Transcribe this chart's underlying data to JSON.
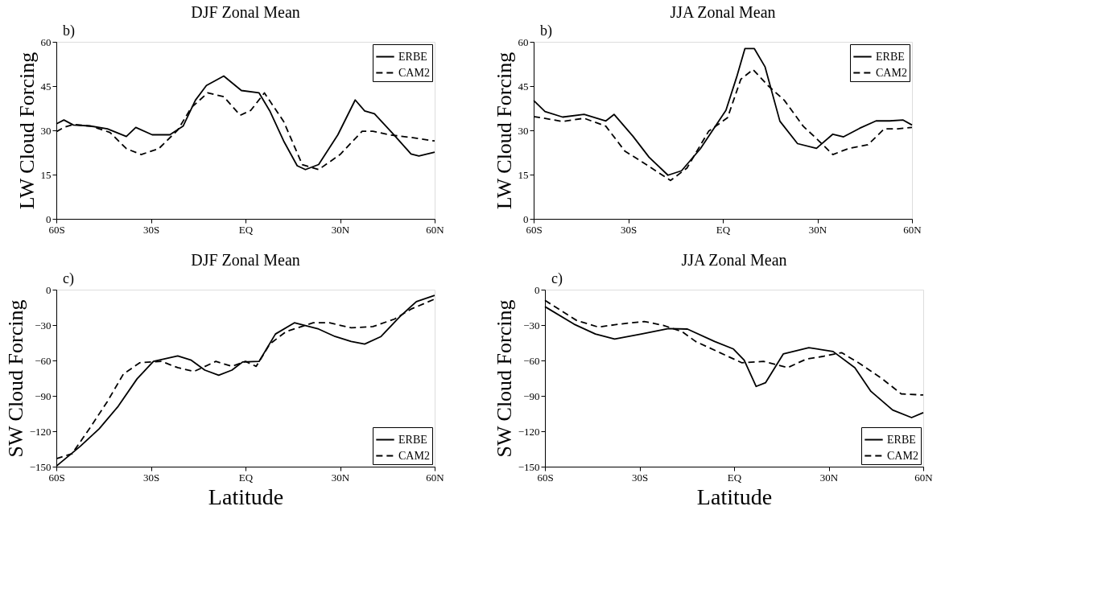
{
  "chart_data": [
    {
      "type": "line",
      "title": "DJF  Zonal Mean",
      "annotations": [
        "b)"
      ],
      "ylabel": "LW Cloud Forcing",
      "xlim": [
        -60,
        60
      ],
      "xticks": [
        {
          "value": -60,
          "label": "60S"
        },
        {
          "value": -30,
          "label": "30S"
        },
        {
          "value": 0,
          "label": "EQ"
        },
        {
          "value": 30,
          "label": "30N"
        },
        {
          "value": 60,
          "label": "60N"
        }
      ],
      "ylim": [
        0,
        60
      ],
      "yticks": [
        0,
        15,
        30,
        45,
        60
      ],
      "legend": "top right",
      "grid": false,
      "series": [
        {
          "name": "ERBE",
          "color": "#000000",
          "line_style": "solid",
          "x": [
            -60,
            -57.6,
            -54.6,
            -49.4,
            -43.8,
            -37.8,
            -34.8,
            -29.6,
            -24,
            -19.8,
            -15.9,
            -12.4,
            -6.9,
            -1.3,
            4.3,
            7.8,
            12.1,
            16.4,
            19,
            23.2,
            29.3,
            34.8,
            37.8,
            40.9,
            46.4,
            52.5,
            55,
            60
          ],
          "values": [
            32.2,
            33.5,
            31.8,
            31.5,
            30.5,
            27.9,
            31,
            28.5,
            28.5,
            31.4,
            40.2,
            45.2,
            48.4,
            43.5,
            42.7,
            36.4,
            26.4,
            18,
            16.7,
            18.4,
            28.5,
            40.3,
            36.6,
            35.6,
            29.3,
            22,
            21.3,
            22.6
          ]
        },
        {
          "name": "CAM2",
          "color": "#000000",
          "line_style": "dashed",
          "x": [
            -60,
            -57.6,
            -54.6,
            -49,
            -43,
            -37.8,
            -33.1,
            -27.5,
            -21.5,
            -17.2,
            -12,
            -6.9,
            -1.7,
            1.7,
            6,
            12.1,
            18,
            23.2,
            30,
            37,
            40.4,
            45.5,
            52.5,
            60
          ],
          "values": [
            29.5,
            31,
            32,
            31.4,
            29.3,
            23.8,
            21.8,
            23.8,
            30.1,
            37.7,
            42.7,
            41.4,
            35.1,
            36.8,
            42.7,
            33,
            18.4,
            16.7,
            21.8,
            29.7,
            29.7,
            28.5,
            27.6,
            26.4
          ]
        }
      ]
    },
    {
      "type": "line",
      "title": "JJA  Zonal Mean",
      "annotations": [
        "b)"
      ],
      "ylabel": "LW Cloud Forcing",
      "xlim": [
        -60,
        60
      ],
      "xticks": [
        {
          "value": -60,
          "label": "60S"
        },
        {
          "value": -30,
          "label": "30S"
        },
        {
          "value": 0,
          "label": "EQ"
        },
        {
          "value": 30,
          "label": "30N"
        },
        {
          "value": 60,
          "label": "60N"
        }
      ],
      "ylim": [
        0,
        60
      ],
      "yticks": [
        0,
        15,
        30,
        45,
        60
      ],
      "legend": "top right",
      "grid": false,
      "series": [
        {
          "name": "ERBE",
          "color": "#000000",
          "line_style": "solid",
          "x": [
            -60,
            -56.4,
            -50.8,
            -44,
            -37.1,
            -34.5,
            -28.5,
            -23.4,
            -17.4,
            -13.1,
            -7.1,
            1,
            4.4,
            7,
            10,
            13.4,
            18.1,
            23.7,
            29.7,
            34.9,
            38.3,
            43.4,
            48.6,
            52.9,
            57.2,
            60
          ],
          "values": [
            40.1,
            36.4,
            34.5,
            35.4,
            33.2,
            35.4,
            28,
            20.9,
            14.8,
            16.3,
            23.8,
            36.8,
            48.1,
            57.7,
            57.7,
            51.5,
            33.1,
            25.5,
            23.9,
            28.7,
            27.8,
            30.7,
            33.2,
            33.2,
            33.5,
            31.8
          ]
        },
        {
          "name": "CAM2",
          "color": "#000000",
          "line_style": "dashed",
          "x": [
            -60,
            -50.8,
            -44,
            -37.1,
            -31.1,
            -24.3,
            -16.6,
            -11.4,
            -4.5,
            1.5,
            5.7,
            9.6,
            14.3,
            19.5,
            25.5,
            29.7,
            34.9,
            40,
            46,
            51.2,
            55.5,
            60
          ],
          "values": [
            34.7,
            33,
            34.1,
            31.4,
            23,
            18.4,
            13,
            17.2,
            29.7,
            34.3,
            47.3,
            50.6,
            45.2,
            40.2,
            31.4,
            27.2,
            21.8,
            23.9,
            25.1,
            30.5,
            30.5,
            31
          ]
        }
      ]
    },
    {
      "type": "line",
      "title": "DJF  Zonal Mean",
      "annotations": [
        "c)"
      ],
      "xlabel": "Latitude",
      "ylabel": "SW Cloud Forcing",
      "xlim": [
        -60,
        60
      ],
      "xticks": [
        {
          "value": -60,
          "label": "60S"
        },
        {
          "value": -30,
          "label": "30S"
        },
        {
          "value": 0,
          "label": "EQ"
        },
        {
          "value": 30,
          "label": "30N"
        },
        {
          "value": 60,
          "label": "60N"
        }
      ],
      "ylim": [
        -150,
        0
      ],
      "yticks": [
        -150,
        -120,
        -90,
        -60,
        -30,
        0
      ],
      "legend": "bottom right",
      "grid": false,
      "series": [
        {
          "name": "ERBE",
          "color": "#000000",
          "line_style": "solid",
          "x": [
            -60,
            -52.4,
            -46.4,
            -40.4,
            -34.4,
            -29.2,
            -21.5,
            -17.2,
            -12.9,
            -8.5,
            -4.3,
            -0.9,
            4.3,
            9.5,
            15.5,
            23.2,
            28.4,
            33.5,
            37.8,
            43,
            49,
            54.2,
            60
          ],
          "values": [
            -149.6,
            -132.7,
            -117.9,
            -98.9,
            -75.6,
            -60.8,
            -56.2,
            -59.8,
            -68.2,
            -72.5,
            -68.2,
            -61.3,
            -60.8,
            -37.6,
            -28.1,
            -33.4,
            -39.7,
            -43.9,
            -46.1,
            -39.7,
            -22.8,
            -10.1,
            -4.9
          ]
        },
        {
          "name": "CAM2",
          "color": "#000000",
          "line_style": "dashed",
          "x": [
            -60,
            -55,
            -49,
            -43.8,
            -38.7,
            -33.5,
            -26.6,
            -21.5,
            -16.3,
            -9.4,
            -4.3,
            0,
            3.4,
            7.7,
            12.9,
            21.5,
            26.6,
            33.5,
            40.4,
            47.3,
            52.5,
            60
          ],
          "values": [
            -143.2,
            -139,
            -115.8,
            -94.7,
            -71.4,
            -61.9,
            -60.8,
            -66.1,
            -69.3,
            -60.8,
            -65,
            -60.8,
            -65,
            -46.1,
            -35.5,
            -28.1,
            -28.1,
            -32.3,
            -31.3,
            -24.9,
            -16.5,
            -8
          ]
        }
      ]
    },
    {
      "type": "line",
      "title": "JJA  Zonal Mean",
      "annotations": [
        "c)"
      ],
      "xlabel": "Latitude",
      "ylabel": "SW Cloud Forcing",
      "xlim": [
        -60,
        60
      ],
      "xticks": [
        {
          "value": -60,
          "label": "60S"
        },
        {
          "value": -30,
          "label": "30S"
        },
        {
          "value": 0,
          "label": "EQ"
        },
        {
          "value": 30,
          "label": "30N"
        },
        {
          "value": 60,
          "label": "60N"
        }
      ],
      "ylim": [
        -150,
        0
      ],
      "yticks": [
        -150,
        -120,
        -90,
        -60,
        -30,
        0
      ],
      "legend": "bottom right",
      "grid": false,
      "series": [
        {
          "name": "ERBE",
          "color": "#000000",
          "line_style": "solid",
          "x": [
            -60,
            -50.8,
            -44,
            -37.9,
            -29.4,
            -20.8,
            -14.8,
            -6.2,
            -0.2,
            3.2,
            7,
            10,
            15.6,
            23.7,
            31.4,
            38.3,
            43.4,
            50.3,
            56.3,
            60
          ],
          "values": [
            -14.4,
            -29.2,
            -37.6,
            -41.8,
            -37.6,
            -33,
            -33.4,
            -43.9,
            -50.3,
            -59.8,
            -82,
            -78.8,
            -54.5,
            -49.2,
            -52.4,
            -66.1,
            -86.2,
            -102,
            -108.4,
            -104.2
          ]
        },
        {
          "name": "CAM2",
          "color": "#000000",
          "line_style": "dashed",
          "x": [
            -60,
            -50,
            -43.1,
            -36.3,
            -28.5,
            -22.5,
            -16.5,
            -12.2,
            -6.2,
            2.4,
            9.3,
            17,
            23,
            28.1,
            34.1,
            40.1,
            47,
            53,
            60
          ],
          "values": [
            -9.1,
            -26,
            -31.7,
            -29.2,
            -27,
            -30.2,
            -35.5,
            -43.9,
            -51.3,
            -61.9,
            -60.8,
            -66.1,
            -58.7,
            -56.6,
            -53.4,
            -63,
            -75.6,
            -88.3,
            -89.3
          ]
        }
      ]
    }
  ]
}
